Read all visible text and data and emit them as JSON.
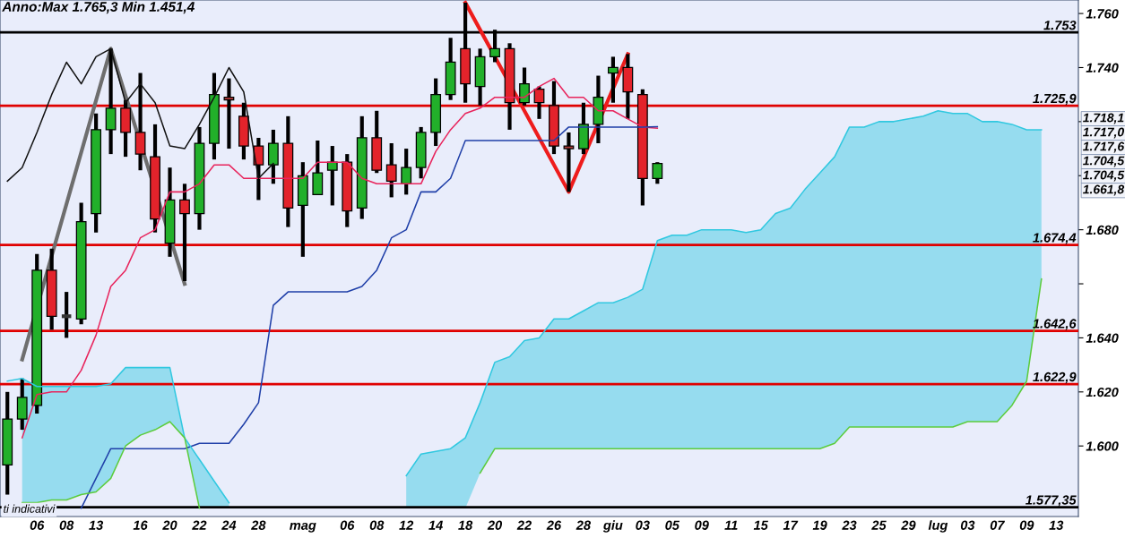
{
  "chart_data": {
    "type": "candlestick",
    "title": "Anno:Max 1.765,3 Min 1.451,4",
    "categories": [
      null,
      null,
      "06",
      null,
      "08",
      null,
      "13",
      null,
      null,
      "16",
      null,
      "20",
      null,
      "22",
      null,
      "24",
      null,
      "28",
      null,
      null,
      "mag",
      null,
      null,
      "06",
      null,
      "08",
      null,
      "12",
      null,
      "14",
      null,
      "18",
      null,
      "20",
      null,
      "22",
      null,
      "26",
      null,
      "28",
      null,
      "giu",
      null,
      "03",
      null,
      "05",
      null,
      "09",
      null,
      "11",
      null,
      "15",
      null,
      "17",
      null,
      "19",
      null,
      "23",
      null,
      "25",
      null,
      "29",
      null,
      "lug",
      null,
      "03",
      null,
      "07",
      null,
      "09",
      null,
      "13",
      null
    ],
    "ohlc": [
      [
        1593,
        1620,
        1582,
        1610
      ],
      [
        1610,
        1625,
        1606,
        1618
      ],
      [
        1615,
        1671,
        1612,
        1665
      ],
      [
        1665,
        1673,
        1643,
        1648
      ],
      [
        1648,
        1657,
        1640,
        1648
      ],
      [
        1647,
        1690,
        1645,
        1683
      ],
      [
        1686,
        1723,
        1679,
        1717
      ],
      [
        1717,
        1747,
        1708,
        1725
      ],
      [
        1725,
        1728,
        1707,
        1716
      ],
      [
        1716,
        1738,
        1702,
        1708
      ],
      [
        1707,
        1719,
        1679,
        1684
      ],
      [
        1675,
        1703,
        1670,
        1691
      ],
      [
        1691,
        1697,
        1661,
        1686
      ],
      [
        1686,
        1718,
        1680,
        1712
      ],
      [
        1712,
        1738,
        1706,
        1730
      ],
      [
        1729,
        1736,
        1710,
        1728
      ],
      [
        1722,
        1727,
        1706,
        1711
      ],
      [
        1711,
        1714,
        1691,
        1704
      ],
      [
        1704,
        1717,
        1697,
        1712
      ],
      [
        1712,
        1722,
        1681,
        1688
      ],
      [
        1689,
        1705,
        1670,
        1700
      ],
      [
        1693,
        1713,
        1693,
        1701
      ],
      [
        1702,
        1711,
        1689,
        1705
      ],
      [
        1705,
        1708,
        1681,
        1687
      ],
      [
        1688,
        1722,
        1684,
        1714
      ],
      [
        1714,
        1724,
        1701,
        1702
      ],
      [
        1704,
        1712,
        1692,
        1698
      ],
      [
        1697,
        1710,
        1693,
        1703
      ],
      [
        1703,
        1718,
        1699,
        1716
      ],
      [
        1716,
        1736,
        1711,
        1730
      ],
      [
        1730,
        1751,
        1728,
        1742
      ],
      [
        1747,
        1764,
        1727,
        1734
      ],
      [
        1733,
        1747,
        1726,
        1744
      ],
      [
        1744,
        1754,
        1742,
        1747
      ],
      [
        1747,
        1749,
        1717,
        1727
      ],
      [
        1727,
        1740,
        1726,
        1734
      ],
      [
        1732,
        1733,
        1721,
        1727
      ],
      [
        1726,
        1735,
        1708,
        1711
      ],
      [
        1711,
        1716,
        1694,
        1710
      ],
      [
        1710,
        1727,
        1708,
        1719
      ],
      [
        1719,
        1737,
        1712,
        1729
      ],
      [
        1738,
        1744,
        1727,
        1740
      ],
      [
        1740,
        1745,
        1721,
        1731
      ],
      [
        1730,
        1732,
        1689,
        1699
      ],
      [
        1699,
        1705,
        1697,
        1704.5
      ],
      null,
      null,
      null,
      null,
      null,
      null,
      null,
      null,
      null,
      null,
      null,
      null,
      null,
      null,
      null,
      null,
      null,
      null,
      null,
      null,
      null,
      null,
      null,
      null,
      null,
      null,
      null,
      null
    ],
    "colors": [
      "#22b02a",
      "#22b02a",
      "#22b02a",
      "#e3232b",
      "#333333",
      "#22b02a",
      "#22b02a",
      "#22b02a",
      "#e3232b",
      "#e3232b",
      "#e3232b",
      "#22b02a",
      "#e3232b",
      "#22b02a",
      "#22b02a",
      "#b03a3a",
      "#e3232b",
      "#e3232b",
      "#22b02a",
      "#e3232b",
      "#22b02a",
      "#22b02a",
      "#22b02a",
      "#e3232b",
      "#22b02a",
      "#e3232b",
      "#e3232b",
      "#22b02a",
      "#22b02a",
      "#22b02a",
      "#22b02a",
      "#e3232b",
      "#22b02a",
      "#22b02a",
      "#e3232b",
      "#22b02a",
      "#e3232b",
      "#e3232b",
      "#b03a3a",
      "#22b02a",
      "#22b02a",
      "#22b02a",
      "#e3232b",
      "#e3232b",
      "#22b02a",
      null,
      null,
      null,
      null,
      null,
      null,
      null,
      null,
      null,
      null,
      null,
      null,
      null,
      null,
      null,
      null,
      null,
      null,
      null,
      null,
      null,
      null,
      null,
      null,
      null,
      null,
      null,
      null
    ],
    "series": [
      {
        "type": "line",
        "color": "#e8245c",
        "values": [
          null,
          1603,
          1619,
          1620,
          1620,
          1628,
          1641,
          1659,
          1665,
          1677,
          1680,
          1694,
          1694,
          1697,
          1704,
          1704,
          1699,
          1699,
          1699,
          1699,
          1699,
          1705,
          1705,
          1705,
          1699,
          1697,
          1697,
          1697,
          1697,
          1709,
          1717,
          1723,
          1725,
          1729,
          1729,
          1729,
          1733,
          1736,
          1729,
          1729,
          1724,
          1724,
          1721,
          1718,
          1717.6,
          null,
          null,
          null,
          null,
          null,
          null,
          null,
          null,
          null,
          null,
          null,
          null,
          null,
          null,
          null,
          null,
          null,
          null,
          null,
          null,
          null,
          null,
          null,
          null,
          null,
          null,
          null,
          null
        ]
      },
      {
        "type": "line",
        "color": "#1f3fa8",
        "values": [
          null,
          null,
          null,
          null,
          null,
          1577,
          1588,
          1599,
          1599,
          1599,
          1599,
          1599,
          1599,
          1601,
          1601,
          1601,
          1608,
          1616,
          1652,
          1657,
          1657,
          1657,
          1657,
          1657,
          1659,
          1665,
          1677,
          1680,
          1694,
          1694,
          1699,
          1713,
          1713,
          1713,
          1713,
          1713,
          1713,
          1713,
          1718,
          1718,
          1718,
          1718,
          1718,
          1718,
          1718.1,
          null,
          null,
          null,
          null,
          null,
          null,
          null,
          null,
          null,
          null,
          null,
          null,
          null,
          null,
          null,
          null,
          null,
          null,
          null,
          null,
          null,
          null,
          null,
          null,
          null,
          null,
          null,
          null
        ]
      },
      {
        "type": "line",
        "color": "#111111",
        "values": [
          1698,
          1703,
          1716,
          1730,
          1742,
          1734,
          1744,
          1747,
          1727,
          1734,
          1727,
          1711,
          1710,
          1719,
          1729,
          1740,
          1731,
          1699,
          1704.5,
          null,
          null,
          null,
          null,
          null,
          null,
          null,
          null,
          null,
          null,
          null,
          null,
          null,
          null,
          null,
          null,
          null,
          null,
          null,
          null,
          null,
          null,
          null,
          null,
          null,
          null,
          null,
          null,
          null,
          null,
          null,
          null,
          null,
          null,
          null,
          null,
          null,
          null,
          null,
          null,
          null,
          null,
          null,
          null,
          null,
          null,
          null,
          null,
          null,
          null,
          null,
          null,
          null,
          null
        ]
      },
      {
        "type": "line",
        "color": "#30c8e0",
        "values": [
          1624,
          1625,
          1622,
          1622,
          1622,
          1622,
          1622,
          1623,
          1629,
          1629,
          1629,
          1629,
          1603,
          1595,
          1587,
          1579,
          null,
          null,
          null,
          null,
          null,
          null,
          null,
          null,
          null,
          null,
          null,
          1589,
          1597,
          1598,
          1599,
          1603,
          1616,
          1631,
          1633,
          1639,
          1640,
          1647,
          1647,
          1650,
          1653,
          1653,
          1655,
          1658,
          1676,
          1678,
          1678,
          1680,
          1680,
          1680,
          1679,
          1680,
          1686,
          1688,
          1695,
          1701,
          1707,
          1718,
          1718,
          1720,
          1720,
          1721,
          1722,
          1724,
          1723,
          1723,
          1720,
          1720,
          1719,
          1717,
          1717,
          null,
          null
        ],
        "upper": [
          null,
          1625,
          1622,
          1622,
          1622,
          1622,
          1622,
          1623,
          1629,
          1629,
          1629,
          1629,
          1603,
          1595,
          1587,
          1579,
          null,
          null,
          null,
          null,
          null,
          null,
          null,
          null,
          null,
          null,
          null,
          1589,
          1597,
          1598,
          1599,
          1603,
          1616,
          1631,
          1633,
          1639,
          1640,
          1647,
          1647,
          1650,
          1653,
          1653,
          1655,
          1658,
          1676,
          1678,
          1678,
          1680,
          1680,
          1680,
          1679,
          1680,
          1686,
          1688,
          1695,
          1701,
          1707,
          1718,
          1718,
          1720,
          1720,
          1721,
          1722,
          1724,
          1723,
          1723,
          1720,
          1720,
          1719,
          1717,
          1717,
          null,
          null
        ],
        "lower": [
          null,
          1579,
          1579,
          1580,
          1580,
          1582,
          1583,
          1588,
          1600,
          1604,
          1606,
          1609,
          1603,
          1577,
          1577,
          1577,
          null,
          null,
          null,
          null,
          null,
          null,
          null,
          null,
          null,
          null,
          null,
          1577,
          1577,
          1577,
          1577,
          1577,
          1590,
          1599,
          1599,
          1599,
          1599,
          1599,
          1599,
          1599,
          1599,
          1599,
          1599,
          1599,
          1599,
          1599,
          1599,
          1599,
          1599,
          1599,
          1599,
          1599,
          1599,
          1599,
          1599,
          1599,
          1601,
          1607,
          1607,
          1607,
          1607,
          1607,
          1607,
          1607,
          1607,
          1609,
          1609,
          1609,
          1615,
          1624,
          1661.8,
          null,
          null
        ]
      },
      {
        "type": "line",
        "color": "#5ccc3c",
        "values": [
          null,
          1579,
          1579,
          1580,
          1580,
          1582,
          1583,
          1588,
          1600,
          1604,
          1606,
          1609,
          1603,
          1577,
          null,
          null,
          null,
          null,
          null,
          null,
          null,
          null,
          null,
          null,
          null,
          null,
          null,
          null,
          null,
          null,
          null,
          null,
          1590,
          1599,
          1599,
          1599,
          1599,
          1599,
          1599,
          1599,
          1599,
          1599,
          1599,
          1599,
          1599,
          1599,
          1599,
          1599,
          1599,
          1599,
          1599,
          1599,
          1599,
          1599,
          1599,
          1599,
          1601,
          1607,
          1607,
          1607,
          1607,
          1607,
          1607,
          1607,
          1607,
          1609,
          1609,
          1609,
          1615,
          1624,
          1661.8,
          null,
          null
        ]
      },
      {
        "type": "line",
        "color": "#6e6e6e",
        "values": [
          null,
          1632,
          null,
          null,
          null,
          null,
          null,
          1747,
          null,
          null,
          null,
          null,
          1660,
          null,
          null,
          null,
          null,
          null,
          null,
          null,
          null,
          null,
          null,
          null,
          null,
          null,
          null,
          null,
          null,
          null,
          null,
          null,
          null,
          null,
          null,
          null,
          null,
          null,
          null,
          null,
          null,
          null,
          null,
          null,
          null,
          null,
          null,
          null,
          null,
          null,
          null,
          null,
          null,
          null,
          null,
          null,
          null,
          null,
          null,
          null,
          null,
          null,
          null,
          null,
          null,
          null,
          null,
          null,
          null,
          null,
          null,
          null,
          null
        ]
      },
      {
        "type": "line",
        "color": "#ee1c1c",
        "values": [
          null,
          null,
          null,
          null,
          null,
          null,
          null,
          null,
          null,
          null,
          null,
          null,
          null,
          null,
          null,
          null,
          null,
          null,
          null,
          null,
          null,
          null,
          null,
          null,
          null,
          null,
          null,
          null,
          null,
          null,
          null,
          1764,
          null,
          null,
          null,
          null,
          null,
          null,
          1694,
          null,
          null,
          null,
          1745,
          null,
          null,
          null,
          null,
          null,
          null,
          null,
          null,
          null,
          null,
          null,
          null,
          null,
          null,
          null,
          null,
          null,
          null,
          null,
          null,
          null,
          null,
          null,
          null,
          null,
          null,
          null,
          null,
          null,
          null
        ]
      }
    ],
    "ylim": [
      1573.9,
      1765
    ],
    "yticks": [
      {
        "value": 1600,
        "label": "1.600"
      },
      {
        "value": 1620,
        "label": "1.620"
      },
      {
        "value": 1640,
        "label": "1.640"
      },
      {
        "value": 1660,
        "label": null
      },
      {
        "value": 1680,
        "label": "1.680"
      },
      {
        "value": 1700,
        "label": null
      },
      {
        "value": 1720,
        "label": null
      },
      {
        "value": 1740,
        "label": "1.740"
      },
      {
        "value": 1760,
        "label": "1.760"
      }
    ],
    "ref_lines": [
      {
        "axis": "y",
        "value": 1753,
        "label": "1.753",
        "color": "#000000"
      },
      {
        "axis": "y",
        "value": 1725.9,
        "label": "1.725,9",
        "color": "#e00000"
      },
      {
        "axis": "y",
        "value": 1674.4,
        "label": "1.674,4",
        "color": "#e00000"
      },
      {
        "axis": "y",
        "value": 1642.6,
        "label": "1.642,6",
        "color": "#e00000"
      },
      {
        "axis": "y",
        "value": 1622.9,
        "label": "1.622,9",
        "color": "#e00000"
      },
      {
        "axis": "y",
        "value": 1577.35,
        "label": "1.577,35",
        "color": "#000000"
      }
    ],
    "annotations": [
      "ti indicativi",
      "1.718,1",
      "1.717,0",
      "1.717,6",
      "1.704,5",
      "1.704,5",
      "1.661,8"
    ]
  }
}
